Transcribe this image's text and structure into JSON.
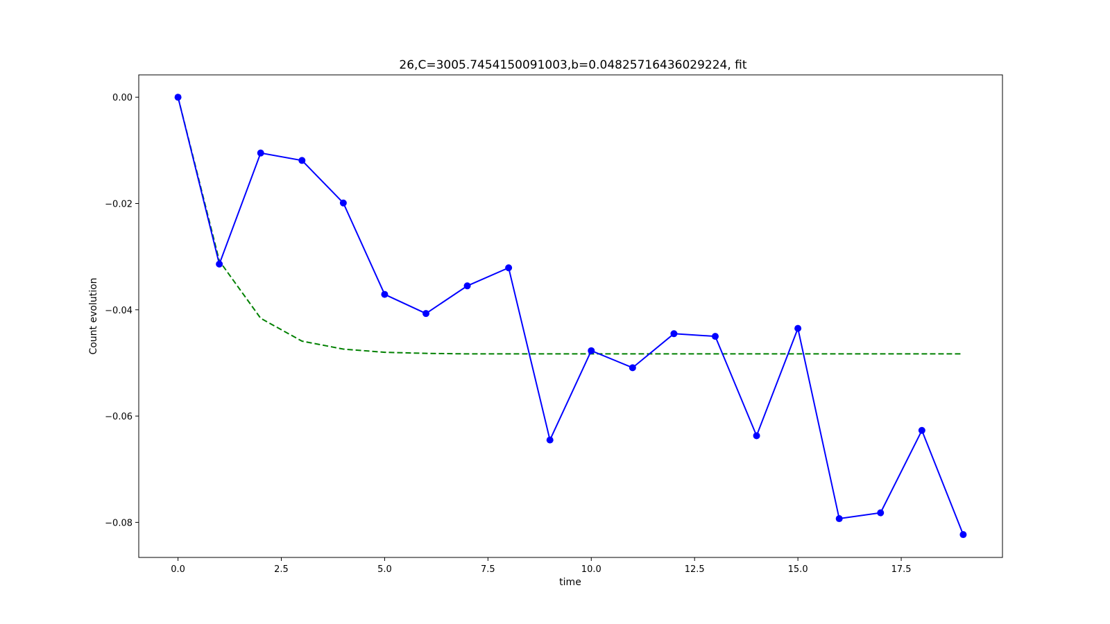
{
  "chart_data": {
    "type": "line",
    "title": "26,C=3005.7454150091003,b=0.04825716436029224, fit",
    "xlabel": "time",
    "ylabel": "Count evolution",
    "xlim": [
      -0.95,
      19.95
    ],
    "ylim": [
      -0.0866,
      0.0042
    ],
    "xticks": [
      0.0,
      2.5,
      5.0,
      7.5,
      10.0,
      12.5,
      15.0,
      17.5
    ],
    "xtick_labels": [
      "0.0",
      "2.5",
      "5.0",
      "7.5",
      "10.0",
      "12.5",
      "15.0",
      "17.5"
    ],
    "yticks": [
      0.0,
      -0.02,
      -0.04,
      -0.06,
      -0.08
    ],
    "ytick_labels": [
      "0.00",
      "−0.02",
      "−0.04",
      "−0.06",
      "−0.08"
    ],
    "grid": false,
    "legend": "none",
    "series": [
      {
        "style": "solid-with-markers",
        "color": "#0000ff",
        "x": [
          0,
          1,
          2,
          3,
          4,
          5,
          6,
          7,
          8,
          9,
          10,
          11,
          12,
          13,
          14,
          15,
          16,
          17,
          18,
          19
        ],
        "y": [
          0.0,
          -0.0314,
          -0.0105,
          -0.0119,
          -0.0199,
          -0.0371,
          -0.0407,
          -0.0355,
          -0.0321,
          -0.0645,
          -0.0477,
          -0.0509,
          -0.0445,
          -0.045,
          -0.0637,
          -0.0435,
          -0.0793,
          -0.0782,
          -0.0627,
          -0.0823
        ]
      },
      {
        "style": "dashed",
        "color": "#008000",
        "x": [
          0,
          1,
          2,
          3,
          4,
          5,
          6,
          7,
          8,
          9,
          10,
          11,
          12,
          13,
          14,
          15,
          16,
          17,
          18,
          19
        ],
        "y": [
          0.0,
          -0.0308,
          -0.0416,
          -0.0459,
          -0.0474,
          -0.048,
          -0.0482,
          -0.0483,
          -0.0483,
          -0.0483,
          -0.0483,
          -0.0483,
          -0.0483,
          -0.0483,
          -0.0483,
          -0.0483,
          -0.0483,
          -0.0483,
          -0.0483,
          -0.0483
        ]
      }
    ]
  }
}
